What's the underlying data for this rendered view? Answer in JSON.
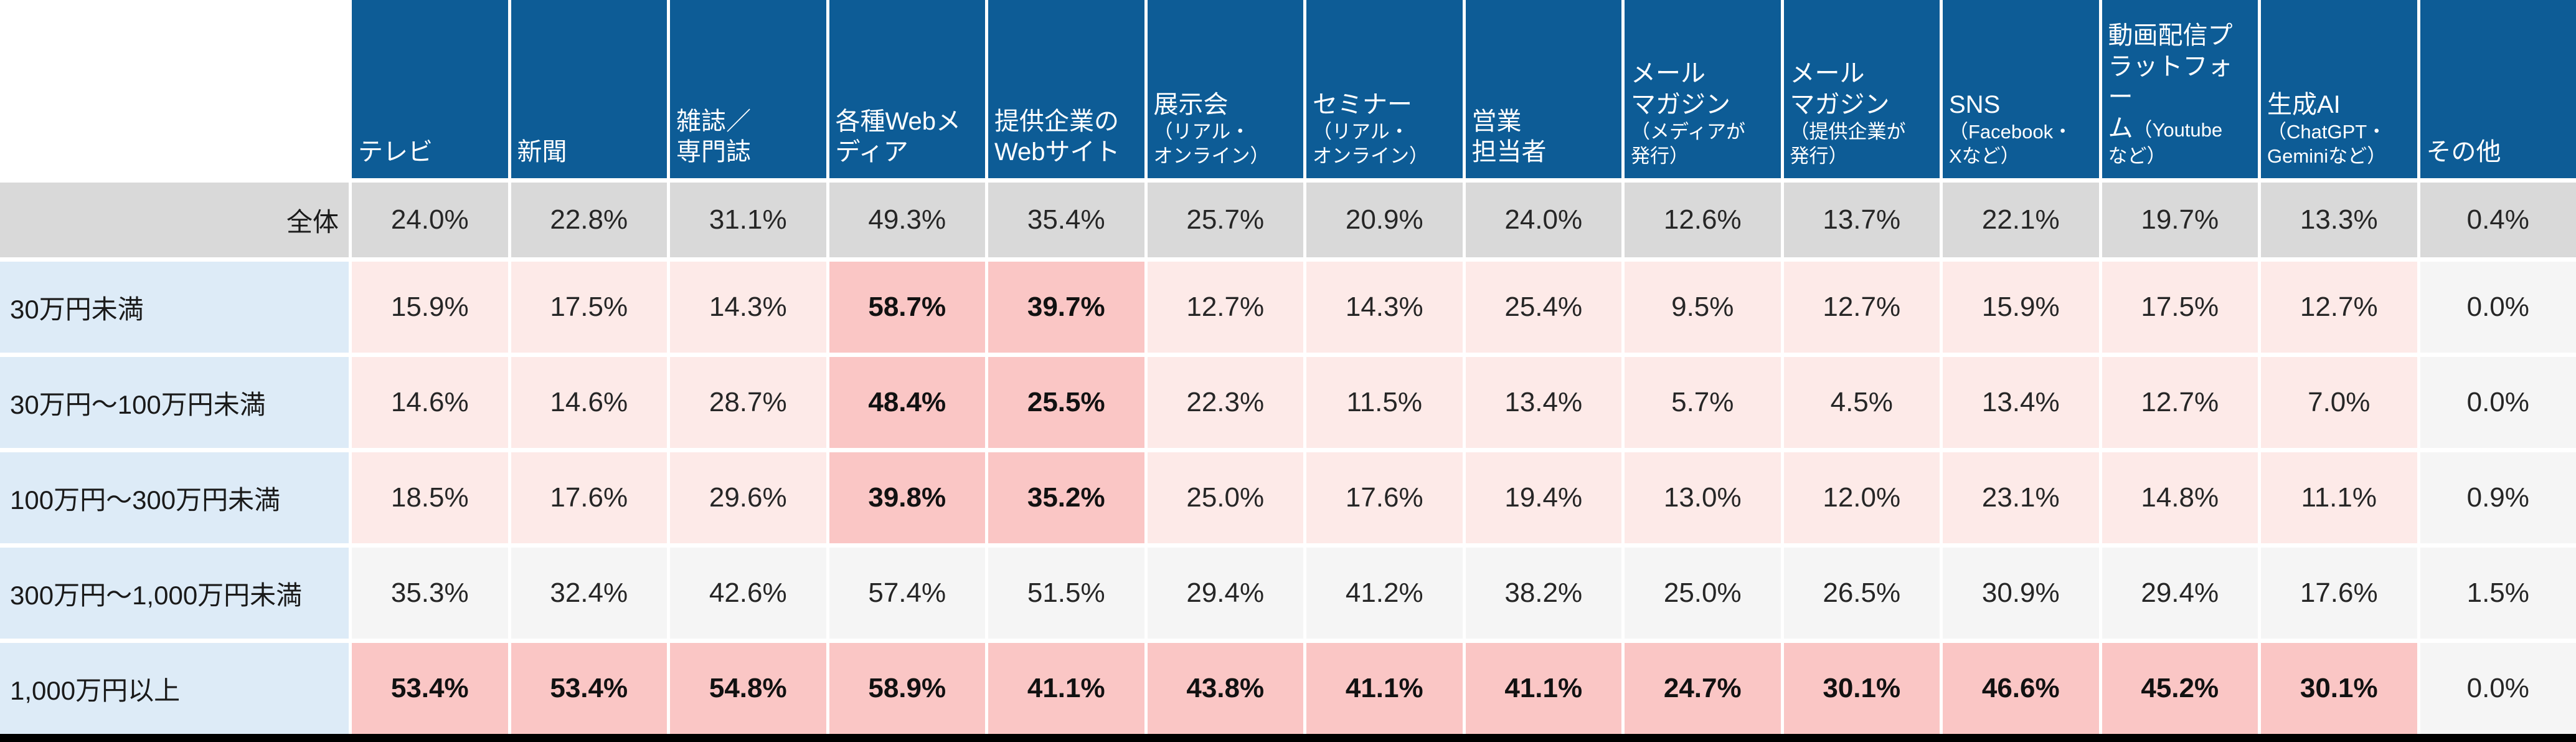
{
  "colors": {
    "header_bg": "#0d5c96",
    "header_text": "#ffffff",
    "total_row_bg": "#d9d9d9",
    "row_label_bg": "#ddebf7",
    "cell_pink": "#fdeae8",
    "cell_highlight": "#fac6c5",
    "cell_gray": "#f5f5f5",
    "bottom_border": "#000000"
  },
  "table": {
    "corner_label": "",
    "columns": [
      {
        "label": "テレビ",
        "sublabel": ""
      },
      {
        "label": "新聞",
        "sublabel": ""
      },
      {
        "label": "雑誌／\n専門誌",
        "sublabel": ""
      },
      {
        "label": "各種Webメ\nディア",
        "sublabel": ""
      },
      {
        "label": "提供企業の\nWebサイト",
        "sublabel": ""
      },
      {
        "label": "展示会",
        "sublabel": "\n（リアル・\nオンライン）"
      },
      {
        "label": "セミナー",
        "sublabel": "\n（リアル・\nオンライン）"
      },
      {
        "label": "営業\n担当者",
        "sublabel": ""
      },
      {
        "label": "メール\nマガジン",
        "sublabel": "\n（メディアが\n発行）"
      },
      {
        "label": "メール\nマガジン",
        "sublabel": "\n（提供企業が\n発行）"
      },
      {
        "label": "SNS",
        "sublabel": "\n（Facebook・\nXなど）"
      },
      {
        "label": "動画配信プ\nラットフォー\nム",
        "sublabel": "（Youtube\nなど）"
      },
      {
        "label": "生成AI",
        "sublabel": "\n（ChatGPT・\nGeminiなど）"
      },
      {
        "label": "その他",
        "sublabel": ""
      }
    ],
    "rows": [
      {
        "label": "全体",
        "style": "total",
        "values": [
          "24.0%",
          "22.8%",
          "31.1%",
          "49.3%",
          "35.4%",
          "25.7%",
          "20.9%",
          "24.0%",
          "12.6%",
          "13.7%",
          "22.1%",
          "19.7%",
          "13.3%",
          "0.4%"
        ],
        "cell_styles": [
          "total",
          "total",
          "total",
          "total",
          "total",
          "total",
          "total",
          "total",
          "total",
          "total",
          "total",
          "total",
          "total",
          "total"
        ]
      },
      {
        "label": "30万円未満",
        "style": "budget",
        "values": [
          "15.9%",
          "17.5%",
          "14.3%",
          "58.7%",
          "39.7%",
          "12.7%",
          "14.3%",
          "25.4%",
          "9.5%",
          "12.7%",
          "15.9%",
          "17.5%",
          "12.7%",
          "0.0%"
        ],
        "cell_styles": [
          "pink",
          "pink",
          "pink",
          "hot",
          "hot",
          "pink",
          "pink",
          "pink",
          "pink",
          "pink",
          "pink",
          "pink",
          "pink",
          "gray"
        ]
      },
      {
        "label": "30万円〜100万円未満",
        "style": "budget",
        "values": [
          "14.6%",
          "14.6%",
          "28.7%",
          "48.4%",
          "25.5%",
          "22.3%",
          "11.5%",
          "13.4%",
          "5.7%",
          "4.5%",
          "13.4%",
          "12.7%",
          "7.0%",
          "0.0%"
        ],
        "cell_styles": [
          "pink",
          "pink",
          "pink",
          "hot",
          "hot",
          "pink",
          "pink",
          "pink",
          "pink",
          "pink",
          "pink",
          "pink",
          "pink",
          "gray"
        ]
      },
      {
        "label": "100万円〜300万円未満",
        "style": "budget",
        "values": [
          "18.5%",
          "17.6%",
          "29.6%",
          "39.8%",
          "35.2%",
          "25.0%",
          "17.6%",
          "19.4%",
          "13.0%",
          "12.0%",
          "23.1%",
          "14.8%",
          "11.1%",
          "0.9%"
        ],
        "cell_styles": [
          "pink",
          "pink",
          "pink",
          "hot",
          "hot",
          "pink",
          "pink",
          "pink",
          "pink",
          "pink",
          "pink",
          "pink",
          "pink",
          "gray"
        ]
      },
      {
        "label": "300万円〜1,000万円未満",
        "style": "budget",
        "values": [
          "35.3%",
          "32.4%",
          "42.6%",
          "57.4%",
          "51.5%",
          "29.4%",
          "41.2%",
          "38.2%",
          "25.0%",
          "26.5%",
          "30.9%",
          "29.4%",
          "17.6%",
          "1.5%"
        ],
        "cell_styles": [
          "gray",
          "gray",
          "gray",
          "gray",
          "gray",
          "gray",
          "gray",
          "gray",
          "gray",
          "gray",
          "gray",
          "gray",
          "gray",
          "gray"
        ]
      },
      {
        "label": "1,000万円以上",
        "style": "budget",
        "values": [
          "53.4%",
          "53.4%",
          "54.8%",
          "58.9%",
          "41.1%",
          "43.8%",
          "41.1%",
          "41.1%",
          "24.7%",
          "30.1%",
          "46.6%",
          "45.2%",
          "30.1%",
          "0.0%"
        ],
        "cell_styles": [
          "hot",
          "hot",
          "hot",
          "hot",
          "hot",
          "hot",
          "hot",
          "hot",
          "hot",
          "hot",
          "hot",
          "hot",
          "hot",
          "gray"
        ]
      }
    ]
  },
  "chart_data": {
    "type": "table",
    "title": "",
    "unit": "%",
    "categories": [
      "テレビ",
      "新聞",
      "雑誌／専門誌",
      "各種Webメディア",
      "提供企業のWebサイト",
      "展示会（リアル・オンライン）",
      "セミナー（リアル・オンライン）",
      "営業担当者",
      "メールマガジン（メディアが発行）",
      "メールマガジン（提供企業が発行）",
      "SNS（Facebook・Xなど）",
      "動画配信プラットフォーム（Youtubeなど）",
      "生成AI（ChatGPT・Geminiなど）",
      "その他"
    ],
    "series": [
      {
        "name": "全体",
        "values": [
          24.0,
          22.8,
          31.1,
          49.3,
          35.4,
          25.7,
          20.9,
          24.0,
          12.6,
          13.7,
          22.1,
          19.7,
          13.3,
          0.4
        ]
      },
      {
        "name": "30万円未満",
        "values": [
          15.9,
          17.5,
          14.3,
          58.7,
          39.7,
          12.7,
          14.3,
          25.4,
          9.5,
          12.7,
          15.9,
          17.5,
          12.7,
          0.0
        ]
      },
      {
        "name": "30万円〜100万円未満",
        "values": [
          14.6,
          14.6,
          28.7,
          48.4,
          25.5,
          22.3,
          11.5,
          13.4,
          5.7,
          4.5,
          13.4,
          12.7,
          7.0,
          0.0
        ]
      },
      {
        "name": "100万円〜300万円未満",
        "values": [
          18.5,
          17.6,
          29.6,
          39.8,
          35.2,
          25.0,
          17.6,
          19.4,
          13.0,
          12.0,
          23.1,
          14.8,
          11.1,
          0.9
        ]
      },
      {
        "name": "300万円〜1,000万円未満",
        "values": [
          35.3,
          32.4,
          42.6,
          57.4,
          51.5,
          29.4,
          41.2,
          38.2,
          25.0,
          26.5,
          30.9,
          29.4,
          17.6,
          1.5
        ]
      },
      {
        "name": "1,000万円以上",
        "values": [
          53.4,
          53.4,
          54.8,
          58.9,
          41.1,
          43.8,
          41.1,
          41.1,
          24.7,
          30.1,
          46.6,
          45.2,
          30.1,
          0.0
        ]
      }
    ],
    "highlighted_cells_note": "Bold dark-pink cells mark emphasized values; 全体 row is gray; 300万円〜1,000万円未満 row and 0-values are neutral gray"
  }
}
